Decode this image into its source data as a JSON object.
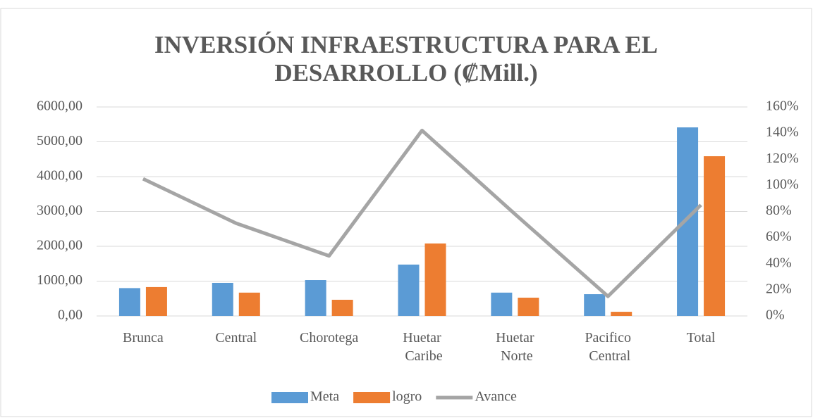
{
  "chart_data": {
    "type": "bar",
    "title": "INVERSIÓN INFRAESTRUCTURA PARA EL DESARROLLO (₡Mill.)",
    "categories": [
      "Brunca",
      "Central",
      "Chorotega",
      "Huetar Caribe",
      "Huetar Norte",
      "Pacifico Central",
      "Total"
    ],
    "series": [
      {
        "name": "Meta",
        "color": "#5b9bd5",
        "values": [
          800,
          950,
          1030,
          1475,
          670,
          625,
          5414
        ]
      },
      {
        "name": "logro",
        "color": "#ed7d31",
        "values": [
          830,
          670,
          465,
          2080,
          525,
          120,
          4586
        ]
      },
      {
        "name": "Avance",
        "color": "#a5a5a5",
        "type": "line",
        "axis": "y2",
        "values": [
          105,
          71,
          46,
          142,
          78,
          15,
          85
        ]
      }
    ],
    "ylim": [
      0,
      6000
    ],
    "yticks": [
      {
        "value": 0,
        "label": "0,00"
      },
      {
        "value": 1000,
        "label": "1000,00"
      },
      {
        "value": 2000,
        "label": "2000,00"
      },
      {
        "value": 3000,
        "label": "3000,00"
      },
      {
        "value": 4000,
        "label": "4000,00"
      },
      {
        "value": 5000,
        "label": "5000,00"
      },
      {
        "value": 6000,
        "label": "6000,00"
      }
    ],
    "y2lim": [
      0,
      160
    ],
    "y2ticks": [
      {
        "value": 0,
        "label": "0%"
      },
      {
        "value": 20,
        "label": "20%"
      },
      {
        "value": 40,
        "label": "40%"
      },
      {
        "value": 60,
        "label": "60%"
      },
      {
        "value": 80,
        "label": "80%"
      },
      {
        "value": 100,
        "label": "100%"
      },
      {
        "value": 120,
        "label": "120%"
      },
      {
        "value": 140,
        "label": "140%"
      },
      {
        "value": 160,
        "label": "160%"
      }
    ],
    "grid": true,
    "legend": "bottom"
  }
}
